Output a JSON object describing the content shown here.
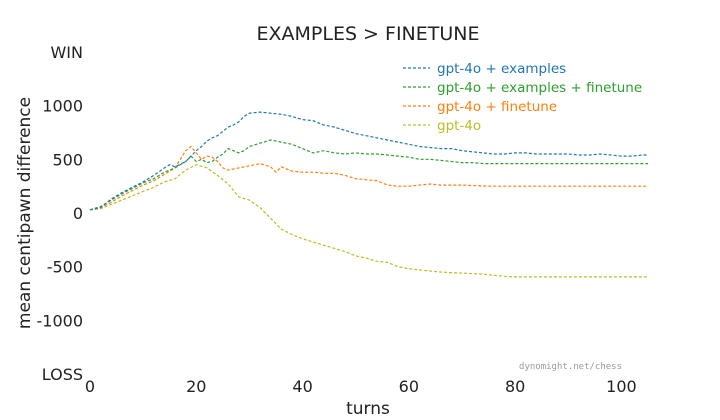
{
  "chart_data": {
    "type": "line",
    "title": "EXAMPLES > FINETUNE",
    "xlabel": "turns",
    "ylabel": "mean centipawn difference",
    "xlim": [
      0,
      105
    ],
    "ylim": [
      -1500,
      1500
    ],
    "x_ticks": [
      0,
      20,
      40,
      60,
      80,
      100
    ],
    "y_ticks": [
      {
        "value": 1500,
        "label": "WIN"
      },
      {
        "value": 1000,
        "label": "1000"
      },
      {
        "value": 500,
        "label": "500"
      },
      {
        "value": 0,
        "label": "0"
      },
      {
        "value": -500,
        "label": "-500"
      },
      {
        "value": -1000,
        "label": "-1000"
      },
      {
        "value": -1500,
        "label": "LOSS"
      }
    ],
    "grid": false,
    "legend_position": "top-right",
    "line_style": "dashed",
    "watermark": "dynomight.net/chess",
    "series": [
      {
        "name": "gpt-4o + examples",
        "color": "#1f77b4",
        "points": [
          [
            0,
            30
          ],
          [
            2,
            50
          ],
          [
            4,
            130
          ],
          [
            6,
            190
          ],
          [
            8,
            240
          ],
          [
            10,
            290
          ],
          [
            12,
            350
          ],
          [
            14,
            420
          ],
          [
            15,
            450
          ],
          [
            16,
            430
          ],
          [
            18,
            480
          ],
          [
            19,
            530
          ],
          [
            20,
            580
          ],
          [
            21,
            620
          ],
          [
            22,
            670
          ],
          [
            23,
            700
          ],
          [
            24,
            720
          ],
          [
            25,
            760
          ],
          [
            26,
            800
          ],
          [
            27,
            820
          ],
          [
            28,
            850
          ],
          [
            29,
            900
          ],
          [
            30,
            930
          ],
          [
            32,
            940
          ],
          [
            34,
            930
          ],
          [
            36,
            920
          ],
          [
            38,
            900
          ],
          [
            40,
            870
          ],
          [
            42,
            860
          ],
          [
            44,
            820
          ],
          [
            46,
            800
          ],
          [
            48,
            770
          ],
          [
            50,
            740
          ],
          [
            52,
            720
          ],
          [
            54,
            700
          ],
          [
            56,
            680
          ],
          [
            58,
            660
          ],
          [
            60,
            640
          ],
          [
            62,
            620
          ],
          [
            64,
            610
          ],
          [
            66,
            600
          ],
          [
            68,
            600
          ],
          [
            70,
            580
          ],
          [
            72,
            570
          ],
          [
            74,
            560
          ],
          [
            76,
            550
          ],
          [
            78,
            550
          ],
          [
            80,
            560
          ],
          [
            82,
            560
          ],
          [
            84,
            550
          ],
          [
            86,
            550
          ],
          [
            88,
            550
          ],
          [
            90,
            550
          ],
          [
            92,
            540
          ],
          [
            94,
            540
          ],
          [
            96,
            550
          ],
          [
            98,
            540
          ],
          [
            100,
            530
          ],
          [
            102,
            530
          ],
          [
            104,
            540
          ],
          [
            105,
            540
          ]
        ]
      },
      {
        "name": "gpt-4o + examples + finetune",
        "color": "#2ca02c",
        "points": [
          [
            0,
            30
          ],
          [
            2,
            60
          ],
          [
            4,
            120
          ],
          [
            6,
            180
          ],
          [
            8,
            230
          ],
          [
            10,
            280
          ],
          [
            12,
            320
          ],
          [
            14,
            380
          ],
          [
            16,
            420
          ],
          [
            18,
            480
          ],
          [
            19,
            530
          ],
          [
            20,
            480
          ],
          [
            21,
            500
          ],
          [
            22,
            470
          ],
          [
            23,
            480
          ],
          [
            24,
            520
          ],
          [
            25,
            550
          ],
          [
            26,
            600
          ],
          [
            27,
            580
          ],
          [
            28,
            560
          ],
          [
            29,
            580
          ],
          [
            30,
            620
          ],
          [
            32,
            650
          ],
          [
            34,
            680
          ],
          [
            36,
            660
          ],
          [
            38,
            640
          ],
          [
            40,
            600
          ],
          [
            42,
            560
          ],
          [
            44,
            580
          ],
          [
            46,
            560
          ],
          [
            48,
            550
          ],
          [
            50,
            560
          ],
          [
            52,
            550
          ],
          [
            54,
            550
          ],
          [
            56,
            540
          ],
          [
            58,
            530
          ],
          [
            60,
            520
          ],
          [
            62,
            500
          ],
          [
            64,
            500
          ],
          [
            66,
            490
          ],
          [
            68,
            480
          ],
          [
            70,
            470
          ],
          [
            72,
            470
          ],
          [
            74,
            460
          ],
          [
            76,
            460
          ],
          [
            78,
            460
          ],
          [
            80,
            460
          ],
          [
            85,
            460
          ],
          [
            90,
            460
          ],
          [
            95,
            460
          ],
          [
            100,
            460
          ],
          [
            105,
            460
          ]
        ]
      },
      {
        "name": "gpt-4o + finetune",
        "color": "#ff7f0e",
        "points": [
          [
            0,
            30
          ],
          [
            2,
            50
          ],
          [
            4,
            100
          ],
          [
            6,
            160
          ],
          [
            8,
            210
          ],
          [
            10,
            260
          ],
          [
            12,
            300
          ],
          [
            14,
            360
          ],
          [
            16,
            420
          ],
          [
            17,
            500
          ],
          [
            18,
            580
          ],
          [
            19,
            620
          ],
          [
            20,
            560
          ],
          [
            21,
            500
          ],
          [
            22,
            530
          ],
          [
            23,
            520
          ],
          [
            24,
            480
          ],
          [
            25,
            420
          ],
          [
            26,
            400
          ],
          [
            27,
            410
          ],
          [
            28,
            420
          ],
          [
            30,
            440
          ],
          [
            32,
            460
          ],
          [
            34,
            430
          ],
          [
            35,
            380
          ],
          [
            36,
            430
          ],
          [
            38,
            390
          ],
          [
            40,
            380
          ],
          [
            42,
            380
          ],
          [
            44,
            370
          ],
          [
            46,
            370
          ],
          [
            48,
            350
          ],
          [
            50,
            320
          ],
          [
            52,
            310
          ],
          [
            54,
            300
          ],
          [
            56,
            260
          ],
          [
            58,
            250
          ],
          [
            60,
            250
          ],
          [
            62,
            260
          ],
          [
            64,
            270
          ],
          [
            66,
            260
          ],
          [
            70,
            260
          ],
          [
            75,
            250
          ],
          [
            80,
            250
          ],
          [
            85,
            250
          ],
          [
            90,
            250
          ],
          [
            95,
            250
          ],
          [
            100,
            250
          ],
          [
            105,
            250
          ]
        ]
      },
      {
        "name": "gpt-4o",
        "color": "#bcbd22",
        "points": [
          [
            0,
            30
          ],
          [
            2,
            40
          ],
          [
            4,
            80
          ],
          [
            6,
            120
          ],
          [
            8,
            160
          ],
          [
            10,
            200
          ],
          [
            12,
            240
          ],
          [
            14,
            290
          ],
          [
            16,
            320
          ],
          [
            18,
            400
          ],
          [
            20,
            450
          ],
          [
            22,
            420
          ],
          [
            24,
            350
          ],
          [
            26,
            270
          ],
          [
            28,
            150
          ],
          [
            30,
            120
          ],
          [
            32,
            50
          ],
          [
            34,
            -50
          ],
          [
            36,
            -150
          ],
          [
            38,
            -200
          ],
          [
            40,
            -240
          ],
          [
            42,
            -270
          ],
          [
            44,
            -300
          ],
          [
            46,
            -330
          ],
          [
            48,
            -360
          ],
          [
            50,
            -400
          ],
          [
            52,
            -420
          ],
          [
            54,
            -450
          ],
          [
            56,
            -460
          ],
          [
            58,
            -500
          ],
          [
            60,
            -520
          ],
          [
            62,
            -530
          ],
          [
            64,
            -540
          ],
          [
            66,
            -550
          ],
          [
            68,
            -555
          ],
          [
            70,
            -560
          ],
          [
            72,
            -565
          ],
          [
            74,
            -570
          ],
          [
            76,
            -580
          ],
          [
            78,
            -590
          ],
          [
            80,
            -595
          ],
          [
            85,
            -595
          ],
          [
            90,
            -595
          ],
          [
            95,
            -595
          ],
          [
            100,
            -595
          ],
          [
            105,
            -595
          ]
        ]
      }
    ]
  }
}
